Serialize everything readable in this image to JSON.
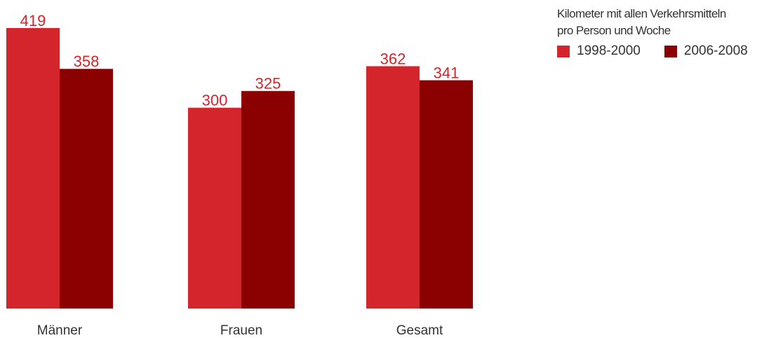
{
  "chart_data": {
    "type": "bar",
    "categories": [
      "Männer",
      "Frauen",
      "Gesamt"
    ],
    "series": [
      {
        "name": "1998-2000",
        "values": [
          419,
          300,
          362
        ],
        "color": "#d3252b"
      },
      {
        "name": "2006-2008",
        "values": [
          358,
          325,
          341
        ],
        "color": "#8b0000"
      }
    ],
    "legend_title_lines": [
      "Kilometer mit allen Verkehrsmitteln",
      "pro Person und Woche"
    ],
    "legend_position": "top-right",
    "ylim": [
      0,
      419
    ],
    "grid": false,
    "label_color": "#d3252b"
  }
}
